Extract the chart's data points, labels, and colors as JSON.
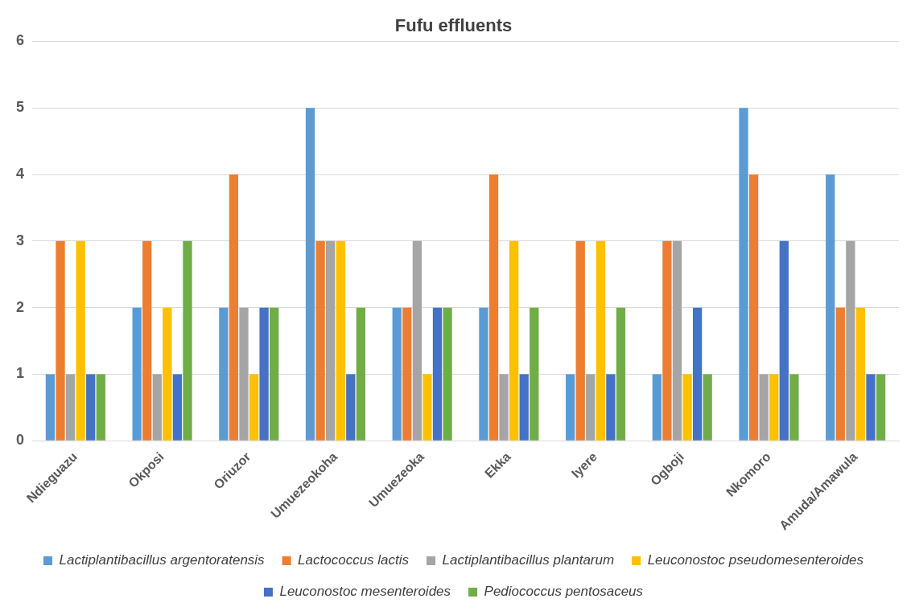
{
  "chart_data": {
    "type": "bar",
    "title": "Fufu effluents",
    "categories": [
      "Ndieguazu",
      "Okposi",
      "Oriuzor",
      "Umuezeokoha",
      "Umuezeoka",
      "Ekka",
      "Iyere",
      "Ogboji",
      "Nkomoro",
      "Amuda/Amawula"
    ],
    "series": [
      {
        "name": "Lactiplantibacillus argentoratensis",
        "color": "#5b9bd5",
        "values": [
          1,
          2,
          2,
          5,
          2,
          2,
          1,
          1,
          5,
          4
        ]
      },
      {
        "name": "Lactococcus lactis",
        "color": "#ed7d31",
        "values": [
          3,
          3,
          4,
          3,
          2,
          4,
          3,
          3,
          4,
          2
        ]
      },
      {
        "name": "Lactiplantibacillus plantarum",
        "color": "#a5a5a5",
        "values": [
          1,
          1,
          2,
          3,
          3,
          1,
          1,
          3,
          1,
          3
        ]
      },
      {
        "name": "Leuconostoc pseudomesenteroides",
        "color": "#ffc000",
        "values": [
          3,
          2,
          1,
          3,
          1,
          3,
          3,
          1,
          1,
          2
        ]
      },
      {
        "name": "Leuconostoc mesenteroides",
        "color": "#4472c4",
        "values": [
          1,
          1,
          2,
          1,
          2,
          1,
          1,
          2,
          3,
          1
        ]
      },
      {
        "name": "Pediococcus pentosaceus",
        "color": "#70ad47",
        "values": [
          1,
          3,
          2,
          2,
          2,
          2,
          2,
          1,
          1,
          1
        ]
      }
    ],
    "ylim": [
      0,
      6
    ],
    "yticks": [
      0,
      1,
      2,
      3,
      4,
      5,
      6
    ],
    "grid": "y",
    "legend": "bottom"
  }
}
